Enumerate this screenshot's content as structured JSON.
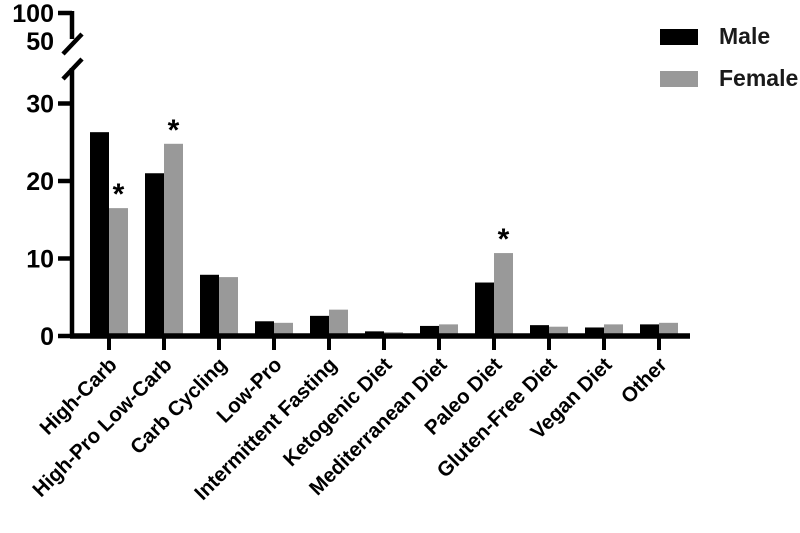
{
  "figure": {
    "background_color": "#ffffff",
    "axis_color": "#000000"
  },
  "legend": {
    "position": "top-right",
    "entries": [
      {
        "label": "Male",
        "color": "#000000"
      },
      {
        "label": "Female",
        "color": "#999999"
      }
    ]
  },
  "chart_data": {
    "type": "bar",
    "title": "",
    "xlabel": "",
    "ylabel": "",
    "grid": false,
    "legend_position": "top-right",
    "categories": [
      "High-Carb",
      "High-Pro Low-Carb",
      "Carb Cycling",
      "Low-Pro",
      "Intermittent Fasting",
      "Ketogenic Diet",
      "Mediterranean Diet",
      "Paleo Diet",
      "Gluten-Free Diet",
      "Vegan Diet",
      "Other"
    ],
    "series": [
      {
        "name": "Male",
        "color": "#000000",
        "values": [
          26.3,
          21.0,
          7.9,
          1.9,
          2.6,
          0.6,
          1.3,
          6.9,
          1.4,
          1.1,
          1.5
        ]
      },
      {
        "name": "Female",
        "color": "#999999",
        "values": [
          16.5,
          24.8,
          7.6,
          1.7,
          3.4,
          0.5,
          1.5,
          10.7,
          1.2,
          1.5,
          1.7
        ]
      }
    ],
    "y_axis": {
      "broken": true,
      "lower_ticks": [
        0,
        10,
        20,
        30
      ],
      "upper_ticks": [
        50,
        100
      ],
      "lower_range": [
        0,
        34
      ],
      "upper_range": [
        50,
        100
      ]
    },
    "significance_marker": "*",
    "significance": [
      {
        "category_index": 0,
        "series": "Female"
      },
      {
        "category_index": 1,
        "series": "Female"
      },
      {
        "category_index": 7,
        "series": "Female"
      }
    ]
  }
}
